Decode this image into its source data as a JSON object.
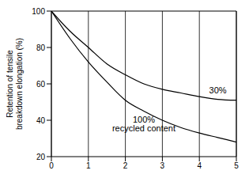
{
  "chart_data": {
    "type": "line",
    "y_label": "Retention of tensile breakdown elongation (%)",
    "x": [
      0,
      0.5,
      1,
      1.5,
      2,
      2.5,
      3,
      3.5,
      4,
      4.5,
      5
    ],
    "series": [
      {
        "name": "30%",
        "color": "#000000",
        "values": [
          100,
          89,
          80,
          71,
          65,
          60,
          57,
          55,
          53,
          51.5,
          51
        ]
      },
      {
        "name": "100% recycled content",
        "color": "#000000",
        "values": [
          100,
          85,
          72,
          61,
          51,
          45,
          40,
          36,
          33,
          30.5,
          28
        ]
      }
    ],
    "xlim": [
      0,
      5
    ],
    "xticks": [
      0,
      1,
      2,
      3,
      4,
      5
    ],
    "ylim": [
      20,
      100
    ],
    "yticks": [
      20,
      40,
      60,
      80,
      100
    ],
    "grid": true
  }
}
